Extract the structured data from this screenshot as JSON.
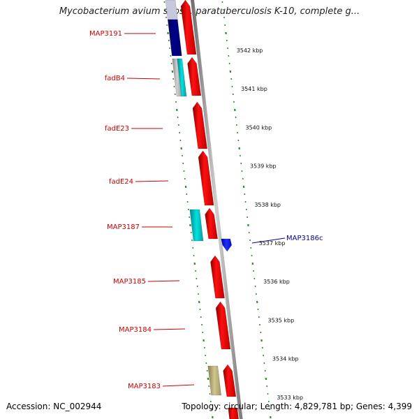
{
  "title": "Mycobacterium avium subsp. paratuberculosis K-10, complete g...",
  "footer": {
    "accession": "Accession: NC_002944",
    "stats": "Topology: circular; Length: 4,829,781 bp; Genes: 4,399"
  },
  "colors": {
    "forward_gene": "#ff0000",
    "reverse_gene": "#0000cc",
    "navy_gene": "#000080",
    "cyan_gene": "#00cccc",
    "gray_gene": "#b0b0b0",
    "khaki_gene": "#b8b070",
    "tick": "#2e8b2e",
    "forward_label": "#cc0000",
    "reverse_label": "#000099",
    "backbone": "#888888"
  },
  "gene_labels": [
    {
      "id": "map3191",
      "text": "MAP3191",
      "strand": "forward"
    },
    {
      "id": "fadb4",
      "text": "fadB4",
      "strand": "forward"
    },
    {
      "id": "fade23",
      "text": "fadE23",
      "strand": "forward"
    },
    {
      "id": "fade24",
      "text": "fadE24",
      "strand": "forward"
    },
    {
      "id": "map3187",
      "text": "MAP3187",
      "strand": "forward"
    },
    {
      "id": "map3185",
      "text": "MAP3185",
      "strand": "forward"
    },
    {
      "id": "map3184",
      "text": "MAP3184",
      "strand": "forward"
    },
    {
      "id": "map3183",
      "text": "MAP3183",
      "strand": "forward"
    },
    {
      "id": "map3186c",
      "text": "MAP3186c",
      "strand": "reverse"
    }
  ],
  "kbp_labels": [
    "3542 kbp",
    "3541 kbp",
    "3540 kbp",
    "3539 kbp",
    "3538 kbp",
    "3537 kbp",
    "3536 kbp",
    "3535 kbp",
    "3534 kbp",
    "3533 kbp"
  ]
}
